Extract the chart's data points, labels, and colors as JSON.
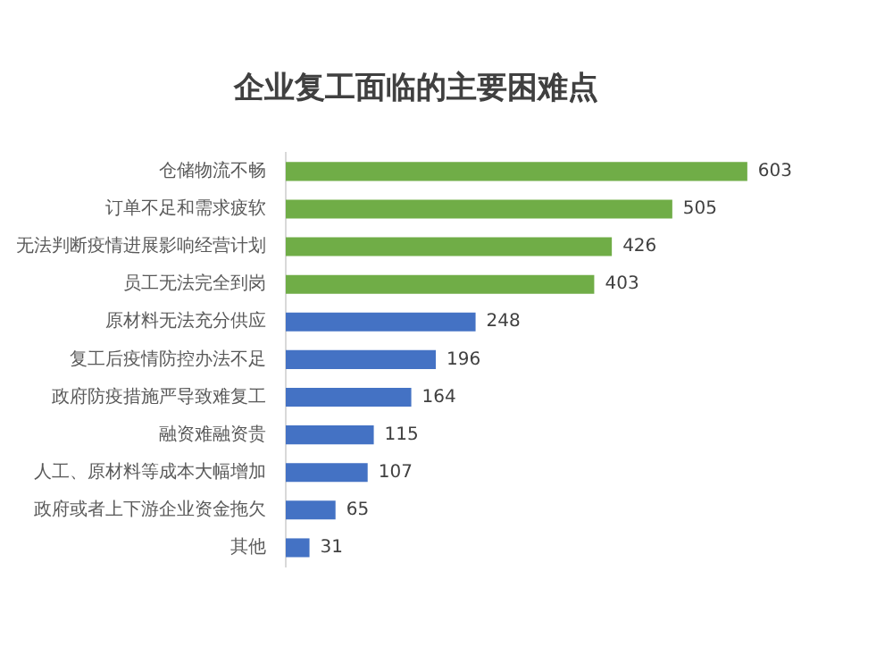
{
  "chart_data": {
    "type": "bar",
    "orientation": "horizontal",
    "title": "企业复工面临的主要困难点",
    "categories": [
      "仓储物流不畅",
      "订单不足和需求疲软",
      "无法判断疫情进展影响经营计划",
      "员工无法完全到岗",
      "原材料无法充分供应",
      "复工后疫情防控办法不足",
      "政府防疫措施严导致难复工",
      "融资难融资贵",
      "人工、原材料等成本大幅增加",
      "政府或者上下游企业资金拖欠",
      "其他"
    ],
    "values": [
      603,
      505,
      426,
      403,
      248,
      196,
      164,
      115,
      107,
      65,
      31
    ],
    "colors": [
      "#70ad47",
      "#70ad47",
      "#70ad47",
      "#70ad47",
      "#4472c4",
      "#4472c4",
      "#4472c4",
      "#4472c4",
      "#4472c4",
      "#4472c4",
      "#4472c4"
    ],
    "data_labels": true,
    "grid": false,
    "legend": false,
    "tick_labels": "y"
  }
}
